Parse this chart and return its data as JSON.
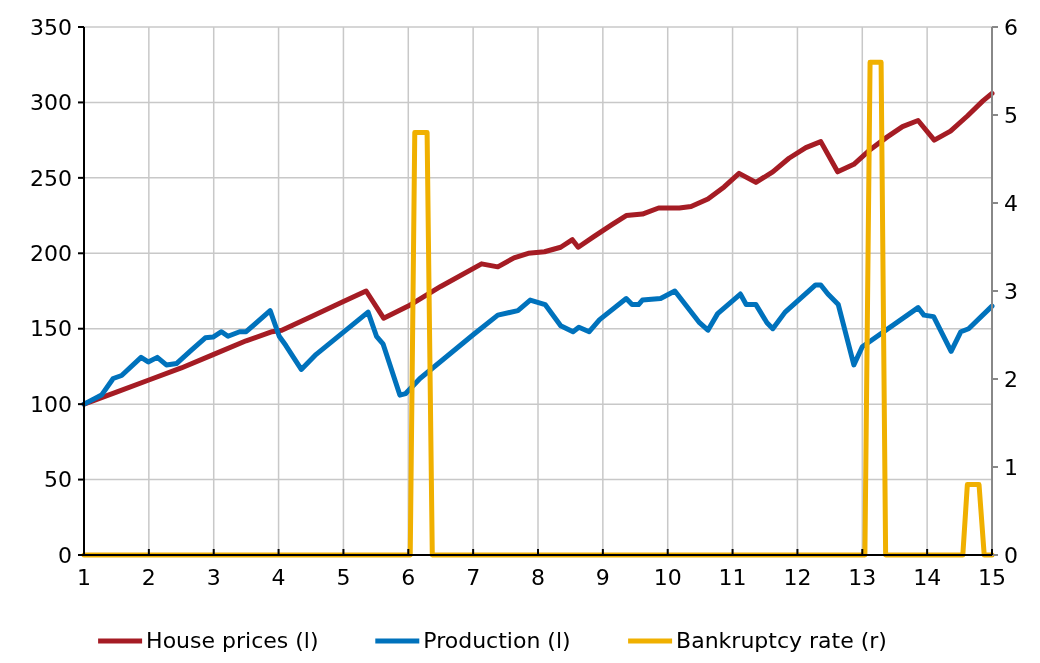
{
  "chart_data": {
    "type": "line",
    "xlim": [
      1,
      15
    ],
    "xticks": [
      1,
      2,
      3,
      4,
      5,
      6,
      7,
      8,
      9,
      10,
      11,
      12,
      13,
      14,
      15
    ],
    "ylim": [
      0,
      350
    ],
    "yticks": [
      0,
      50,
      100,
      150,
      200,
      250,
      300,
      350
    ],
    "y2lim": [
      0,
      6
    ],
    "y2ticks": [
      0,
      1,
      2,
      3,
      4,
      5,
      6
    ],
    "grid": true,
    "legend": "bottom",
    "line_style": "solid",
    "marker": "none",
    "series": [
      {
        "name": "House prices (l)",
        "color": "#a51c24",
        "x": [
          1,
          1.5,
          2,
          2.5,
          3,
          3.5,
          3.9,
          4.05,
          4.5,
          5,
          5.35,
          5.62,
          6,
          6.5,
          7.13,
          7.38,
          7.63,
          7.85,
          8.1,
          8.35,
          8.53,
          8.62,
          8.86,
          9.14,
          9.36,
          9.61,
          9.86,
          10.18,
          10.36,
          10.62,
          10.87,
          11.1,
          11.36,
          11.62,
          11.87,
          12.13,
          12.36,
          12.62,
          12.87,
          13.13,
          13.38,
          13.62,
          13.86,
          14.11,
          14.36,
          14.62,
          14.86,
          15
        ],
        "values": [
          100,
          108,
          116,
          124,
          133,
          142,
          148,
          149,
          158,
          168,
          175,
          157,
          165,
          178,
          193,
          191,
          197,
          200,
          201,
          204,
          209,
          204,
          211,
          219,
          225,
          226,
          230,
          230,
          231,
          236,
          244,
          253,
          247,
          254,
          263,
          270,
          274,
          254,
          259,
          269,
          277,
          284,
          288,
          275,
          281,
          291,
          301,
          306
        ]
      },
      {
        "name": "Production (l)",
        "color": "#0072bc",
        "x": [
          1,
          1.27,
          1.45,
          1.58,
          1.88,
          1.99,
          2.13,
          2.27,
          2.43,
          2.66,
          2.87,
          2.99,
          3.12,
          3.22,
          3.4,
          3.5,
          3.87,
          4.01,
          4.11,
          4.35,
          4.58,
          5.38,
          5.51,
          5.61,
          5.87,
          5.96,
          6.18,
          7,
          7.38,
          7.69,
          7.88,
          8.11,
          8.35,
          8.54,
          8.63,
          8.79,
          8.95,
          9.36,
          9.45,
          9.55,
          9.61,
          9.89,
          10.11,
          10.49,
          10.62,
          10.77,
          11.12,
          11.21,
          11.36,
          11.53,
          11.62,
          11.81,
          12.28,
          12.36,
          12.47,
          12.63,
          12.87,
          13,
          13.86,
          13.95,
          14.1,
          14.37,
          14.52,
          14.64,
          15
        ],
        "values": [
          100,
          106,
          117,
          119,
          131,
          128,
          131,
          126,
          127,
          136,
          144,
          144.5,
          148,
          145,
          148,
          148,
          162,
          145,
          139,
          123,
          133,
          161,
          145,
          140,
          106,
          107,
          117,
          146,
          159,
          162,
          169,
          166,
          152,
          148,
          151,
          148,
          156,
          170,
          166,
          166,
          169,
          170,
          175,
          154,
          149,
          160,
          173,
          166,
          166,
          154,
          150,
          161,
          179,
          179,
          173,
          166,
          126,
          138,
          164,
          159,
          158,
          135,
          148,
          150,
          165
        ]
      },
      {
        "name": "Bankruptcy rate (r)",
        "color": "#f0b000",
        "axis": "y2",
        "x": [
          1,
          6.03,
          6.1,
          6.29,
          6.37,
          13.04,
          13.12,
          13.29,
          13.36,
          14.55,
          14.62,
          14.8,
          14.88,
          15
        ],
        "values": [
          0,
          0,
          4.8,
          4.8,
          0,
          0,
          5.6,
          5.6,
          0,
          0,
          0.8,
          0.8,
          0,
          0
        ]
      }
    ]
  }
}
